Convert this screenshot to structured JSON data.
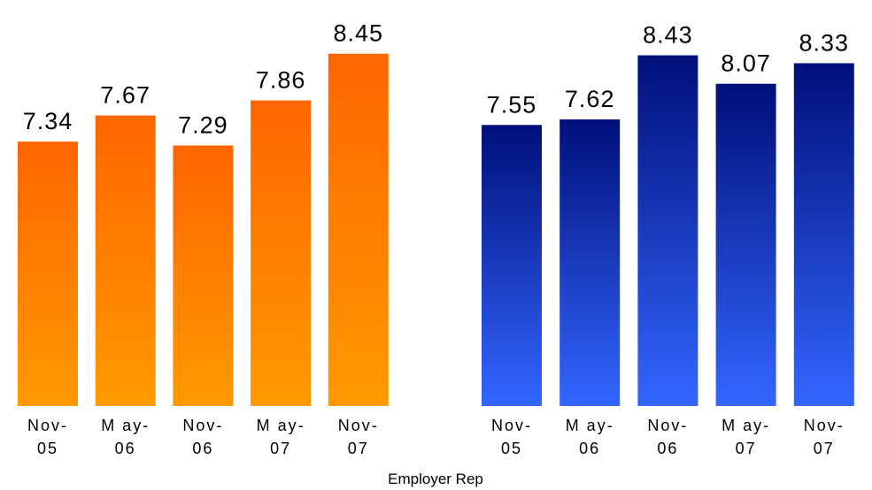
{
  "chart_data": [
    {
      "type": "bar",
      "categories": [
        [
          "Nov-",
          "05"
        ],
        [
          "M ay-",
          "06"
        ],
        [
          "Nov-",
          "06"
        ],
        [
          "M ay-",
          "07"
        ],
        [
          "Nov-",
          "07"
        ]
      ],
      "values": [
        7.34,
        7.67,
        7.29,
        7.86,
        8.45
      ],
      "colors": {
        "top": "#FF6600",
        "bottom": "#FF9900"
      },
      "ylim": [
        4.0,
        8.6
      ]
    },
    {
      "type": "bar",
      "categories": [
        [
          "Nov-",
          "05"
        ],
        [
          "M ay-",
          "06"
        ],
        [
          "Nov-",
          "06"
        ],
        [
          "M ay-",
          "07"
        ],
        [
          "Nov-",
          "07"
        ]
      ],
      "values": [
        7.55,
        7.62,
        8.43,
        8.07,
        8.33
      ],
      "colors": {
        "top": "#000F7A",
        "bottom": "#3366FF"
      },
      "ylim": [
        4.0,
        8.6
      ]
    }
  ],
  "xlabel": "Employer Rep"
}
